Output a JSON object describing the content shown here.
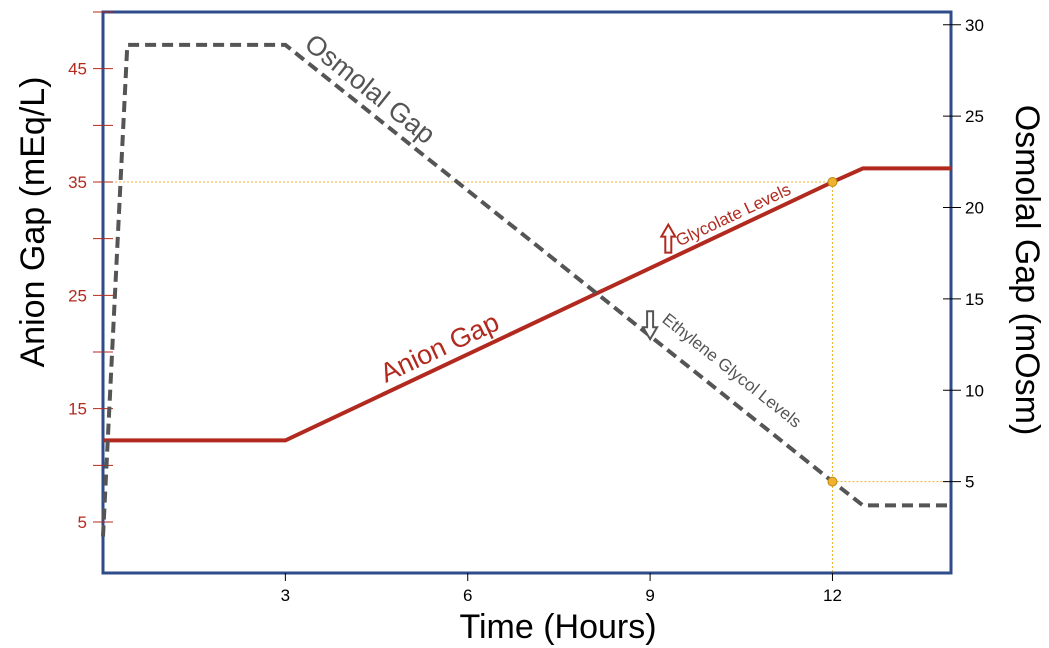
{
  "chart_data": {
    "type": "line",
    "xlabel": "Time (Hours)",
    "ylabel_left": "Anion Gap (mEq/L)",
    "ylabel_right": "Osmolal Gap (mOsm)",
    "x_ticks": [
      3,
      6,
      9,
      12
    ],
    "y_left_ticks": [
      5,
      15,
      25,
      35,
      45
    ],
    "y_right_ticks": [
      5,
      10,
      15,
      20,
      25,
      30
    ],
    "xlim": [
      0,
      13.95
    ],
    "ylim_left": [
      0.5,
      50
    ],
    "ylim_right": [
      0,
      30.7
    ],
    "series": [
      {
        "name": "Anion Gap",
        "axis": "left",
        "color": "#b22a1f",
        "style": "solid",
        "x": [
          0,
          3,
          12,
          12.5,
          13.95
        ],
        "y": [
          12.2,
          12.2,
          35,
          36.2,
          36.2
        ]
      },
      {
        "name": "Osmolal Gap",
        "axis": "right",
        "color": "#555555",
        "style": "dashed",
        "x": [
          0,
          0.4,
          3,
          12,
          12.5,
          13.95
        ],
        "y": [
          2,
          28.9,
          28.9,
          5,
          3.7,
          3.7
        ]
      }
    ],
    "annotations": [
      {
        "text": "Glycolate Levels",
        "arrow": "up",
        "color": "#b22a1f",
        "x": 9.3,
        "y_left": 29.3
      },
      {
        "text": "Ethylene Glycol Levels",
        "arrow": "down",
        "color": "#555555",
        "x": 9.0,
        "y_right": 14
      }
    ],
    "reference_markers": [
      {
        "x": 12,
        "y_left": 35,
        "color": "#f0b030"
      },
      {
        "x": 12,
        "y_right": 5,
        "color": "#f0b030"
      }
    ],
    "frame_color": "#2f4b8a",
    "left_axis_color": "#b22a1f",
    "grid": false
  }
}
